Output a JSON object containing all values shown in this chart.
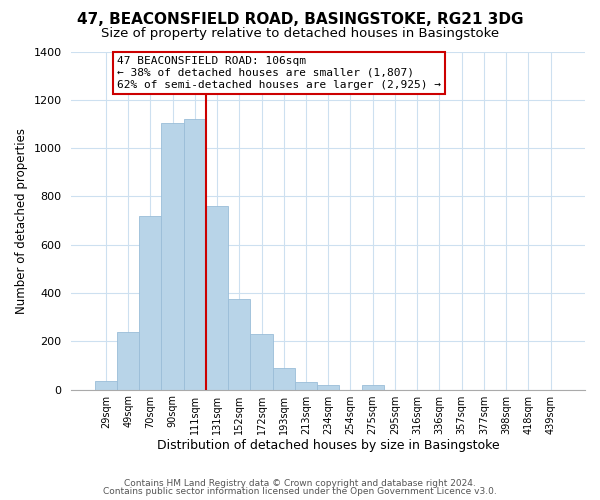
{
  "title": "47, BEACONSFIELD ROAD, BASINGSTOKE, RG21 3DG",
  "subtitle": "Size of property relative to detached houses in Basingstoke",
  "xlabel": "Distribution of detached houses by size in Basingstoke",
  "ylabel": "Number of detached properties",
  "bar_labels": [
    "29sqm",
    "49sqm",
    "70sqm",
    "90sqm",
    "111sqm",
    "131sqm",
    "152sqm",
    "172sqm",
    "193sqm",
    "213sqm",
    "234sqm",
    "254sqm",
    "275sqm",
    "295sqm",
    "316sqm",
    "336sqm",
    "357sqm",
    "377sqm",
    "398sqm",
    "418sqm",
    "439sqm"
  ],
  "bar_values": [
    35,
    240,
    720,
    1105,
    1120,
    760,
    375,
    230,
    90,
    30,
    20,
    0,
    20,
    0,
    0,
    0,
    0,
    0,
    0,
    0,
    0
  ],
  "bar_color": "#b8d4e8",
  "bar_edge_color": "#9abdd8",
  "vline_color": "#cc0000",
  "vline_x_index": 4,
  "annotation_title": "47 BEACONSFIELD ROAD: 106sqm",
  "annotation_line1": "← 38% of detached houses are smaller (1,807)",
  "annotation_line2": "62% of semi-detached houses are larger (2,925) →",
  "annotation_box_color": "#ffffff",
  "annotation_box_edge": "#cc0000",
  "ylim": [
    0,
    1400
  ],
  "yticks": [
    0,
    200,
    400,
    600,
    800,
    1000,
    1200,
    1400
  ],
  "footer1": "Contains HM Land Registry data © Crown copyright and database right 2024.",
  "footer2": "Contains public sector information licensed under the Open Government Licence v3.0.",
  "background_color": "#ffffff",
  "grid_color": "#cde0f0",
  "title_fontsize": 11,
  "subtitle_fontsize": 9.5,
  "ylabel_fontsize": 8.5,
  "xlabel_fontsize": 9
}
